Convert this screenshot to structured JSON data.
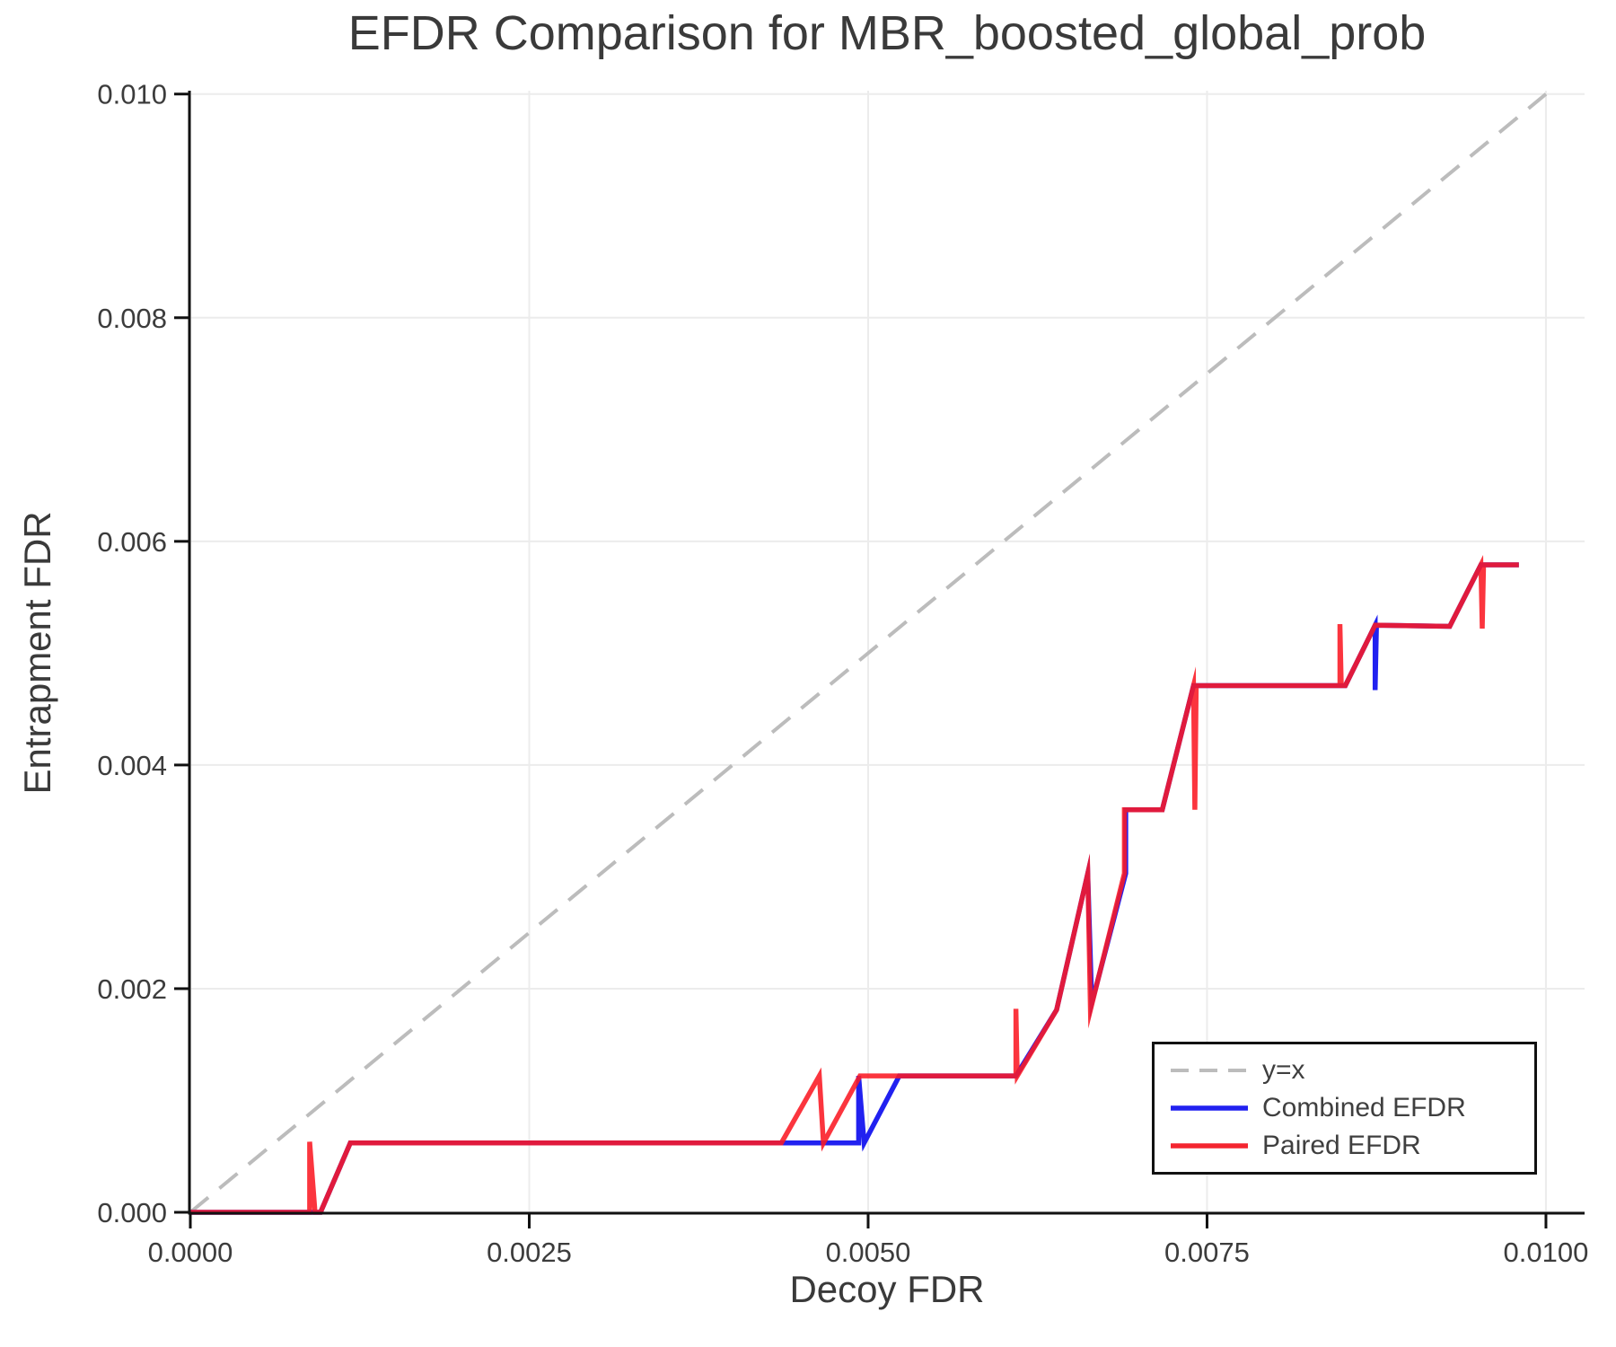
{
  "title": "EFDR Comparison for MBR_boosted_global_prob",
  "x_axis": {
    "label": "Decoy FDR",
    "tick_labels": [
      "0.0000",
      "0.0025",
      "0.0050",
      "0.0075",
      "0.0100"
    ],
    "tick_values": [
      0.0,
      0.0025,
      0.005,
      0.0075,
      0.01
    ]
  },
  "y_axis": {
    "label": "Entrapment FDR",
    "tick_labels": [
      "0.000",
      "0.002",
      "0.004",
      "0.006",
      "0.008",
      "0.010"
    ],
    "tick_values": [
      0.0,
      0.002,
      0.004,
      0.006,
      0.008,
      0.01
    ]
  },
  "legend": {
    "items": [
      {
        "label": "y=x",
        "style": "dashed",
        "color": "#bcbcbc"
      },
      {
        "label": "Combined EFDR",
        "style": "solid",
        "color": "#2121f0"
      },
      {
        "label": "Paired EFDR",
        "style": "solid",
        "color": "#f42530"
      }
    ]
  },
  "colors": {
    "grid": "#ececec",
    "spine": "#111111",
    "tick_text": "#3c3c3c",
    "reference": "#bcbcbc",
    "combined": "#2121f0",
    "paired": "#fa1923"
  },
  "chart_data": {
    "type": "line",
    "title": "EFDR Comparison for MBR_boosted_global_prob",
    "xlabel": "Decoy FDR",
    "ylabel": "Entrapment FDR",
    "xlim": [
      0,
      0.010285
    ],
    "ylim": [
      0,
      0.01003
    ],
    "grid": true,
    "legend_position": "lower right",
    "series": [
      {
        "name": "y=x",
        "kind": "reference",
        "color": "#bcbcbc",
        "dash": [
          26,
          16
        ],
        "width": 4,
        "points": [
          [
            0,
            0
          ],
          [
            0.01,
            0.01
          ]
        ]
      },
      {
        "name": "Combined EFDR",
        "kind": "data",
        "color": "#2121f0",
        "width": 5.5,
        "points": [
          [
            0,
            0
          ],
          [
            0.00096,
            0
          ],
          [
            0.00118,
            0.00062
          ],
          [
            0.00493,
            0.00062
          ],
          [
            0.00493,
            0.00122
          ],
          [
            0.00497,
            0.00062
          ],
          [
            0.00523,
            0.00122
          ],
          [
            0.00609,
            0.00122
          ],
          [
            0.00639,
            0.00181
          ],
          [
            0.00662,
            0.00303
          ],
          [
            0.00665,
            0.00187
          ],
          [
            0.0069,
            0.00303
          ],
          [
            0.0069,
            0.0036
          ],
          [
            0.00717,
            0.0036
          ],
          [
            0.0074,
            0.00471
          ],
          [
            0.00852,
            0.00471
          ],
          [
            0.00874,
            0.00525
          ],
          [
            0.00874,
            0.00467
          ],
          [
            0.00875,
            0.00525
          ],
          [
            0.00929,
            0.00524
          ],
          [
            0.00952,
            0.00579
          ],
          [
            0.0098,
            0.00579
          ]
        ]
      },
      {
        "name": "Paired EFDR",
        "kind": "data",
        "color": "#fa1923",
        "opacity": 0.88,
        "width": 5.5,
        "points": [
          [
            0,
            0
          ],
          [
            0.00088,
            0
          ],
          [
            0.00088,
            0.00063
          ],
          [
            0.00092,
            0
          ],
          [
            0.00096,
            0
          ],
          [
            0.00118,
            0.00062
          ],
          [
            0.00436,
            0.00062
          ],
          [
            0.00464,
            0.00122
          ],
          [
            0.00467,
            0.00062
          ],
          [
            0.00494,
            0.00122
          ],
          [
            0.00609,
            0.00122
          ],
          [
            0.00609,
            0.00182
          ],
          [
            0.0061,
            0.00122
          ],
          [
            0.00639,
            0.00181
          ],
          [
            0.00662,
            0.00303
          ],
          [
            0.00664,
            0.00181
          ],
          [
            0.00689,
            0.00303
          ],
          [
            0.00689,
            0.0036
          ],
          [
            0.00717,
            0.0036
          ],
          [
            0.0074,
            0.00471
          ],
          [
            0.00741,
            0.0036
          ],
          [
            0.00742,
            0.00471
          ],
          [
            0.00848,
            0.00471
          ],
          [
            0.00848,
            0.00526
          ],
          [
            0.00849,
            0.00471
          ],
          [
            0.00852,
            0.00471
          ],
          [
            0.00874,
            0.00525
          ],
          [
            0.00929,
            0.00524
          ],
          [
            0.00952,
            0.00579
          ],
          [
            0.00953,
            0.00522
          ],
          [
            0.00954,
            0.00579
          ],
          [
            0.0098,
            0.00579
          ]
        ]
      }
    ]
  }
}
